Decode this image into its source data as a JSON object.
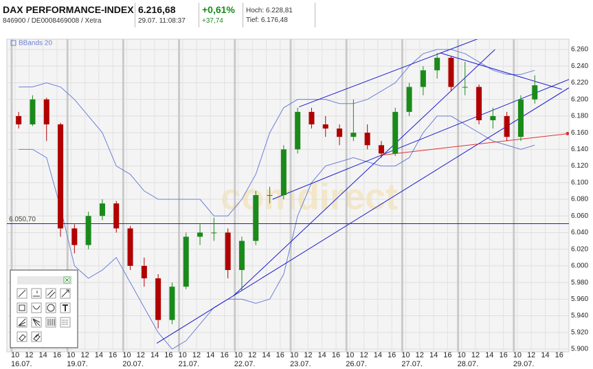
{
  "header": {
    "title": "DAX PERFORMANCE-INDEX",
    "subtitle": "846900 / DE0008469008 / Xetra",
    "price": "6.216,68",
    "time": "29.07. 11:08:37",
    "change_pct": "+0,61%",
    "change_abs": "+37,74",
    "high": "Hoch: 6.228,81",
    "low": "Tief: 6.176,48"
  },
  "chart_data": {
    "type": "candlestick",
    "watermark": "comdirect",
    "up_color": "#1a8a1a",
    "down_color": "#b00000",
    "grid": true,
    "xlim": [
      -0.69,
      79.9
    ],
    "ylim": [
      5896.7,
      6272.4
    ],
    "yticks": [
      {
        "value": 5900,
        "label": "5.900"
      },
      {
        "value": 5920,
        "label": "5.920"
      },
      {
        "value": 5940,
        "label": "5.940"
      },
      {
        "value": 5960,
        "label": "5.960"
      },
      {
        "value": 5980,
        "label": "5.980"
      },
      {
        "value": 6000,
        "label": "6.000"
      },
      {
        "value": 6020,
        "label": "6.020"
      },
      {
        "value": 6040,
        "label": "6.040"
      },
      {
        "value": 6060,
        "label": "6.060"
      },
      {
        "value": 6080,
        "label": "6.080"
      },
      {
        "value": 6100,
        "label": "6.100"
      },
      {
        "value": 6120,
        "label": "6.120"
      },
      {
        "value": 6140,
        "label": "6.140"
      },
      {
        "value": 6160,
        "label": "6.160"
      },
      {
        "value": 6180,
        "label": "6.180"
      },
      {
        "value": 6200,
        "label": "6.200"
      },
      {
        "value": 6220,
        "label": "6.220"
      },
      {
        "value": 6240,
        "label": "6.240"
      },
      {
        "value": 6260,
        "label": "6.260"
      }
    ],
    "xticks": [
      {
        "value": 0.5,
        "label": "10"
      },
      {
        "value": 2.5,
        "label": "12"
      },
      {
        "value": 4.5,
        "label": "14"
      },
      {
        "value": 6.5,
        "label": "16"
      },
      {
        "value": 8.5,
        "label": "10"
      },
      {
        "value": 10.5,
        "label": "12"
      },
      {
        "value": 12.5,
        "label": "14"
      },
      {
        "value": 14.5,
        "label": "16"
      },
      {
        "value": 16.5,
        "label": "10"
      },
      {
        "value": 18.5,
        "label": "12"
      },
      {
        "value": 20.5,
        "label": "14"
      },
      {
        "value": 22.5,
        "label": "16"
      },
      {
        "value": 24.5,
        "label": "10"
      },
      {
        "value": 26.5,
        "label": "12"
      },
      {
        "value": 28.5,
        "label": "14"
      },
      {
        "value": 30.5,
        "label": "16"
      },
      {
        "value": 32.5,
        "label": "10"
      },
      {
        "value": 34.5,
        "label": "12"
      },
      {
        "value": 36.5,
        "label": "14"
      },
      {
        "value": 38.5,
        "label": "16"
      },
      {
        "value": 40.5,
        "label": "10"
      },
      {
        "value": 42.5,
        "label": "12"
      },
      {
        "value": 44.5,
        "label": "14"
      },
      {
        "value": 46.5,
        "label": "16"
      },
      {
        "value": 48.5,
        "label": "10"
      },
      {
        "value": 50.5,
        "label": "12"
      },
      {
        "value": 52.5,
        "label": "14"
      },
      {
        "value": 54.5,
        "label": "16"
      },
      {
        "value": 56.5,
        "label": "10"
      },
      {
        "value": 58.5,
        "label": "12"
      },
      {
        "value": 60.5,
        "label": "14"
      },
      {
        "value": 62.5,
        "label": "16"
      },
      {
        "value": 64.5,
        "label": "10"
      },
      {
        "value": 66.5,
        "label": "12"
      },
      {
        "value": 68.5,
        "label": "14"
      },
      {
        "value": 70.5,
        "label": "16"
      },
      {
        "value": 72.5,
        "label": "10"
      },
      {
        "value": 74.5,
        "label": "12"
      },
      {
        "value": 76.5,
        "label": "14"
      },
      {
        "value": 78.5,
        "label": "16"
      }
    ],
    "date_ticks": [
      {
        "value": 0,
        "label": "16.07."
      },
      {
        "value": 8,
        "label": "19.07."
      },
      {
        "value": 16,
        "label": "20.07."
      },
      {
        "value": 24,
        "label": "21.07."
      },
      {
        "value": 32,
        "label": "22.07."
      },
      {
        "value": 40,
        "label": "23.07."
      },
      {
        "value": 48,
        "label": "26.07."
      },
      {
        "value": 56,
        "label": "27.07."
      },
      {
        "value": 64,
        "label": "28.07."
      },
      {
        "value": 72,
        "label": "29.07."
      }
    ],
    "x": [
      1,
      3,
      5,
      7,
      9,
      11,
      13,
      15,
      17,
      19,
      21,
      23,
      25,
      27,
      29,
      31,
      33,
      35,
      37,
      39,
      41,
      43,
      45,
      47,
      49,
      51,
      53,
      55,
      57,
      59,
      61,
      63,
      65,
      67,
      69,
      71,
      73,
      75
    ],
    "ohlc": [
      [
        6180,
        6185,
        6165,
        6170
      ],
      [
        6170,
        6205,
        6168,
        6200
      ],
      [
        6200,
        6202,
        6150,
        6170
      ],
      [
        6170,
        6172,
        6035,
        6045
      ],
      [
        6045,
        6050,
        6015,
        6025
      ],
      [
        6025,
        6065,
        6020,
        6060
      ],
      [
        6060,
        6080,
        6055,
        6075
      ],
      [
        6075,
        6078,
        6040,
        6045
      ],
      [
        6045,
        6048,
        5995,
        6000
      ],
      [
        6000,
        6010,
        5975,
        5985
      ],
      [
        5985,
        5990,
        5925,
        5935
      ],
      [
        5935,
        5980,
        5930,
        5975
      ],
      [
        5975,
        6040,
        5972,
        6035
      ],
      [
        6035,
        6050,
        6025,
        6040
      ],
      [
        6040,
        6058,
        6030,
        6040
      ],
      [
        6040,
        6045,
        5985,
        5995
      ],
      [
        5995,
        6035,
        5970,
        6030
      ],
      [
        6030,
        6090,
        6025,
        6085
      ],
      [
        6085,
        6095,
        6075,
        6085
      ],
      [
        6085,
        6145,
        6080,
        6140
      ],
      [
        6140,
        6190,
        6135,
        6185
      ],
      [
        6185,
        6190,
        6165,
        6170
      ],
      [
        6170,
        6180,
        6155,
        6165
      ],
      [
        6165,
        6170,
        6145,
        6155
      ],
      [
        6155,
        6200,
        6150,
        6160
      ],
      [
        6160,
        6170,
        6140,
        6145
      ],
      [
        6145,
        6150,
        6130,
        6135
      ],
      [
        6135,
        6190,
        6132,
        6185
      ],
      [
        6185,
        6220,
        6180,
        6215
      ],
      [
        6215,
        6240,
        6205,
        6235
      ],
      [
        6235,
        6256,
        6225,
        6250
      ],
      [
        6250,
        6252,
        6210,
        6215
      ],
      [
        6215,
        6245,
        6205,
        6215
      ],
      [
        6215,
        6218,
        6170,
        6175
      ],
      [
        6175,
        6190,
        6165,
        6180
      ],
      [
        6180,
        6185,
        6150,
        6155
      ],
      [
        6155,
        6205,
        6150,
        6200
      ],
      [
        6200,
        6229,
        6195,
        6217
      ]
    ],
    "bands": {
      "name": "BBands 20",
      "color": "#6b7fd6",
      "upper": [
        6215,
        6215,
        6220,
        6215,
        6200,
        6180,
        6160,
        6120,
        6110,
        6090,
        6080,
        6080,
        6080,
        6080,
        6060,
        6060,
        6080,
        6110,
        6160,
        6190,
        6200,
        6200,
        6200,
        6195,
        6195,
        6200,
        6210,
        6220,
        6240,
        6255,
        6260,
        6260,
        6255,
        6245,
        6235,
        6230,
        6230,
        6235
      ],
      "lower": [
        6140,
        6140,
        6130,
        6070,
        6000,
        5985,
        5995,
        6010,
        5980,
        5950,
        5920,
        5900,
        5910,
        5930,
        5950,
        5960,
        5960,
        5955,
        5960,
        5990,
        6060,
        6100,
        6120,
        6125,
        6130,
        6125,
        6120,
        6120,
        6130,
        6160,
        6180,
        6180,
        6170,
        6160,
        6150,
        6145,
        6140,
        6145
      ]
    },
    "trendlines": [
      {
        "color": "#1a1acc",
        "x": [
          31.8,
          69.3
        ],
        "values": [
          5964,
          6260
        ]
      },
      {
        "color": "#1a1acc",
        "x": [
          20.8,
          79.9
        ],
        "values": [
          5907,
          6214
        ]
      },
      {
        "color": "#1a1acc",
        "x": [
          37.4,
          53
        ],
        "values": [
          6080,
          6133
        ]
      },
      {
        "color": "#1a1acc",
        "x": [
          53,
          79.9
        ],
        "values": [
          6133,
          6224
        ]
      },
      {
        "color": "#1a1acc",
        "x": [
          41.2,
          69.1
        ],
        "values": [
          6191,
          6280
        ]
      },
      {
        "color": "#1a1acc",
        "x": [
          61.4,
          78.9
        ],
        "values": [
          6256,
          6212
        ]
      },
      {
        "color": "#e03030",
        "x": [
          53,
          79.9
        ],
        "values": [
          6133,
          6159
        ]
      }
    ],
    "hline": {
      "value": 6050.7,
      "label": "6.050,70",
      "color": "#1a1acc"
    }
  }
}
